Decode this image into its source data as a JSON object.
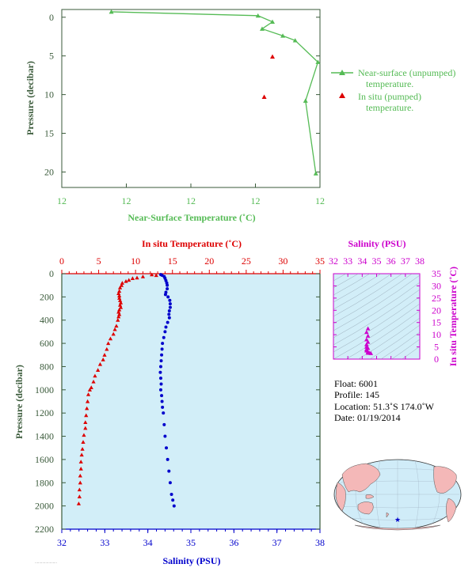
{
  "chart_data": [
    {
      "type": "line",
      "xlabel": "Near-Surface Temperature (˚C)",
      "ylabel": "Pressure (decibar)",
      "xticks": [
        "12",
        "12",
        "12",
        "12",
        "12"
      ],
      "yticks": [
        "0",
        "5",
        "10",
        "15",
        "20"
      ],
      "ylim": [
        22,
        -1
      ],
      "series": [
        {
          "name": "Near-surface (unpumped) temperature.",
          "legend_line2": "temperature.",
          "legend_line1": "Near-surface (unpumped)",
          "color": "#55bb55",
          "marker": "triangle",
          "x": [
            11.24,
            11.95,
            12.02,
            11.97,
            12.07,
            12.13,
            12.24,
            12.18,
            12.23
          ],
          "y": [
            -0.7,
            -0.2,
            0.6,
            1.5,
            2.4,
            3.0,
            5.8,
            10.8,
            20.2
          ]
        },
        {
          "name": "In situ (pumped) temperature.",
          "legend_line1": "In situ (pumped)",
          "legend_line2": "temperature.",
          "color": "#dd0000",
          "marker": "triangle",
          "x": [
            11.98,
            12.02
          ],
          "y": [
            10.3,
            5.1
          ]
        }
      ]
    },
    {
      "type": "line",
      "ylabel": "Pressure (decibar)",
      "yticks": [
        "0",
        "200",
        "400",
        "600",
        "800",
        "1000",
        "1200",
        "1400",
        "1600",
        "1800",
        "2000",
        "2200"
      ],
      "ylim": [
        2200,
        0
      ],
      "top_axis": {
        "label": "In situ Temperature (˚C)",
        "ticks": [
          "0",
          "5",
          "10",
          "15",
          "20",
          "25",
          "30",
          "35"
        ],
        "xlim": [
          0,
          35
        ]
      },
      "bottom_axis": {
        "label": "Salinity (PSU)",
        "ticks": [
          "32",
          "33",
          "34",
          "35",
          "36",
          "37",
          "38"
        ],
        "xlim": [
          32,
          38
        ]
      },
      "series": [
        {
          "name": "In situ Temperature",
          "color": "#dd0000",
          "marker": "triangle",
          "axis": "top",
          "values": [
            [
              12.2,
              8
            ],
            [
              12.8,
              14
            ],
            [
              11.0,
              25
            ],
            [
              10.2,
              35
            ],
            [
              9.6,
              40
            ],
            [
              9.1,
              55
            ],
            [
              8.7,
              65
            ],
            [
              8.2,
              80
            ],
            [
              8.1,
              100
            ],
            [
              7.9,
              120
            ],
            [
              7.8,
              150
            ],
            [
              7.7,
              170
            ],
            [
              7.8,
              190
            ],
            [
              7.8,
              210
            ],
            [
              7.9,
              230
            ],
            [
              8.0,
              250
            ],
            [
              7.9,
              270
            ],
            [
              8.0,
              290
            ],
            [
              7.8,
              310
            ],
            [
              7.7,
              330
            ],
            [
              7.8,
              350
            ],
            [
              7.7,
              370
            ],
            [
              7.6,
              400
            ],
            [
              7.4,
              450
            ],
            [
              7.2,
              480
            ],
            [
              7.0,
              520
            ],
            [
              6.6,
              560
            ],
            [
              6.3,
              600
            ],
            [
              6.1,
              650
            ],
            [
              5.8,
              700
            ],
            [
              5.6,
              740
            ],
            [
              5.2,
              780
            ],
            [
              4.9,
              830
            ],
            [
              4.5,
              880
            ],
            [
              4.3,
              930
            ],
            [
              4.0,
              980
            ],
            [
              3.8,
              1000
            ],
            [
              3.6,
              1040
            ],
            [
              3.5,
              1100
            ],
            [
              3.4,
              1160
            ],
            [
              3.3,
              1220
            ],
            [
              3.2,
              1280
            ],
            [
              3.2,
              1330
            ],
            [
              3.0,
              1390
            ],
            [
              2.9,
              1450
            ],
            [
              2.8,
              1510
            ],
            [
              2.7,
              1560
            ],
            [
              2.6,
              1620
            ],
            [
              2.6,
              1680
            ],
            [
              2.5,
              1740
            ],
            [
              2.5,
              1800
            ],
            [
              2.4,
              1860
            ],
            [
              2.4,
              1920
            ],
            [
              2.3,
              1980
            ]
          ]
        },
        {
          "name": "Salinity",
          "color": "#0000cc",
          "marker": "dot",
          "axis": "bottom",
          "values": [
            [
              34.3,
              8
            ],
            [
              34.33,
              14
            ],
            [
              34.38,
              25
            ],
            [
              34.4,
              40
            ],
            [
              34.42,
              60
            ],
            [
              34.44,
              80
            ],
            [
              34.45,
              100
            ],
            [
              34.45,
              130
            ],
            [
              34.42,
              160
            ],
            [
              34.41,
              180
            ],
            [
              34.47,
              200
            ],
            [
              34.51,
              230
            ],
            [
              34.52,
              260
            ],
            [
              34.52,
              290
            ],
            [
              34.5,
              320
            ],
            [
              34.49,
              350
            ],
            [
              34.5,
              380
            ],
            [
              34.46,
              420
            ],
            [
              34.42,
              460
            ],
            [
              34.4,
              500
            ],
            [
              34.37,
              550
            ],
            [
              34.34,
              600
            ],
            [
              34.33,
              650
            ],
            [
              34.32,
              700
            ],
            [
              34.31,
              750
            ],
            [
              34.3,
              800
            ],
            [
              34.29,
              850
            ],
            [
              34.3,
              900
            ],
            [
              34.31,
              950
            ],
            [
              34.3,
              1000
            ],
            [
              34.32,
              1050
            ],
            [
              34.33,
              1100
            ],
            [
              34.34,
              1150
            ],
            [
              34.36,
              1200
            ],
            [
              34.38,
              1300
            ],
            [
              34.4,
              1400
            ],
            [
              34.43,
              1500
            ],
            [
              34.46,
              1600
            ],
            [
              34.49,
              1700
            ],
            [
              34.52,
              1800
            ],
            [
              34.55,
              1900
            ],
            [
              34.58,
              1950
            ],
            [
              34.61,
              2000
            ]
          ]
        }
      ]
    },
    {
      "type": "scatter",
      "xlabel": "Salinity (PSU)",
      "ylabel": "In situ Temperature (˚C)",
      "xticks": [
        "32",
        "33",
        "34",
        "35",
        "36",
        "37",
        "38"
      ],
      "yticks": [
        "0",
        "5",
        "10",
        "15",
        "20",
        "25",
        "30",
        "35"
      ],
      "xlim": [
        32,
        38
      ],
      "ylim": [
        0,
        35
      ],
      "color": "#cc00cc",
      "values": [
        [
          34.4,
          12.5
        ],
        [
          34.3,
          11.0
        ],
        [
          34.4,
          9.5
        ],
        [
          34.3,
          8.0
        ],
        [
          34.4,
          7.0
        ],
        [
          34.3,
          6.0
        ],
        [
          34.3,
          5.0
        ],
        [
          34.4,
          4.5
        ],
        [
          34.3,
          4.0
        ],
        [
          34.3,
          3.5
        ],
        [
          34.4,
          3.0
        ],
        [
          34.4,
          2.5
        ],
        [
          34.5,
          2.5
        ],
        [
          34.6,
          2.4
        ]
      ]
    }
  ],
  "info": {
    "float": "Float: 6001",
    "profile": "Profile: 145",
    "location": "Location: 51.3˚S 174.0˚W",
    "date": "Date: 01/19/2014"
  },
  "map": {
    "marker_color": "#0000cc",
    "land_color": "#f4b8b8",
    "ocean_color": "#d0ecf8"
  },
  "colors": {
    "near_surface": "#55bb55",
    "axis_green": "#3a5a3a",
    "in_situ": "#dd0000",
    "salinity": "#0000cc",
    "ts_plot": "#cc00cc",
    "panel_bg": "#d2eef8"
  }
}
